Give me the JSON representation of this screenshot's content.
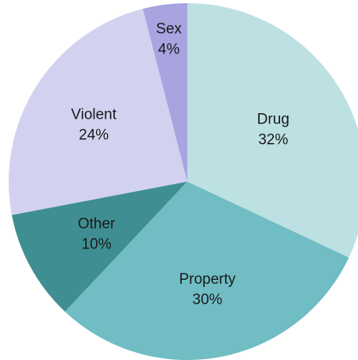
{
  "chart_data": {
    "type": "pie",
    "title": "",
    "start_angle_deg": 0,
    "direction": "clockwise",
    "slices": [
      {
        "label": "Drug",
        "value": 32,
        "value_label": "32%",
        "color": "#bde0e2"
      },
      {
        "label": "Property",
        "value": 30,
        "value_label": "30%",
        "color": "#70bdc4"
      },
      {
        "label": "Other",
        "value": 10,
        "value_label": "10%",
        "color": "#3f8f92"
      },
      {
        "label": "Violent",
        "value": 24,
        "value_label": "24%",
        "color": "#d2d2f0"
      },
      {
        "label": "Sex",
        "value": 4,
        "value_label": "4%",
        "color": "#a7a4e0"
      }
    ]
  }
}
